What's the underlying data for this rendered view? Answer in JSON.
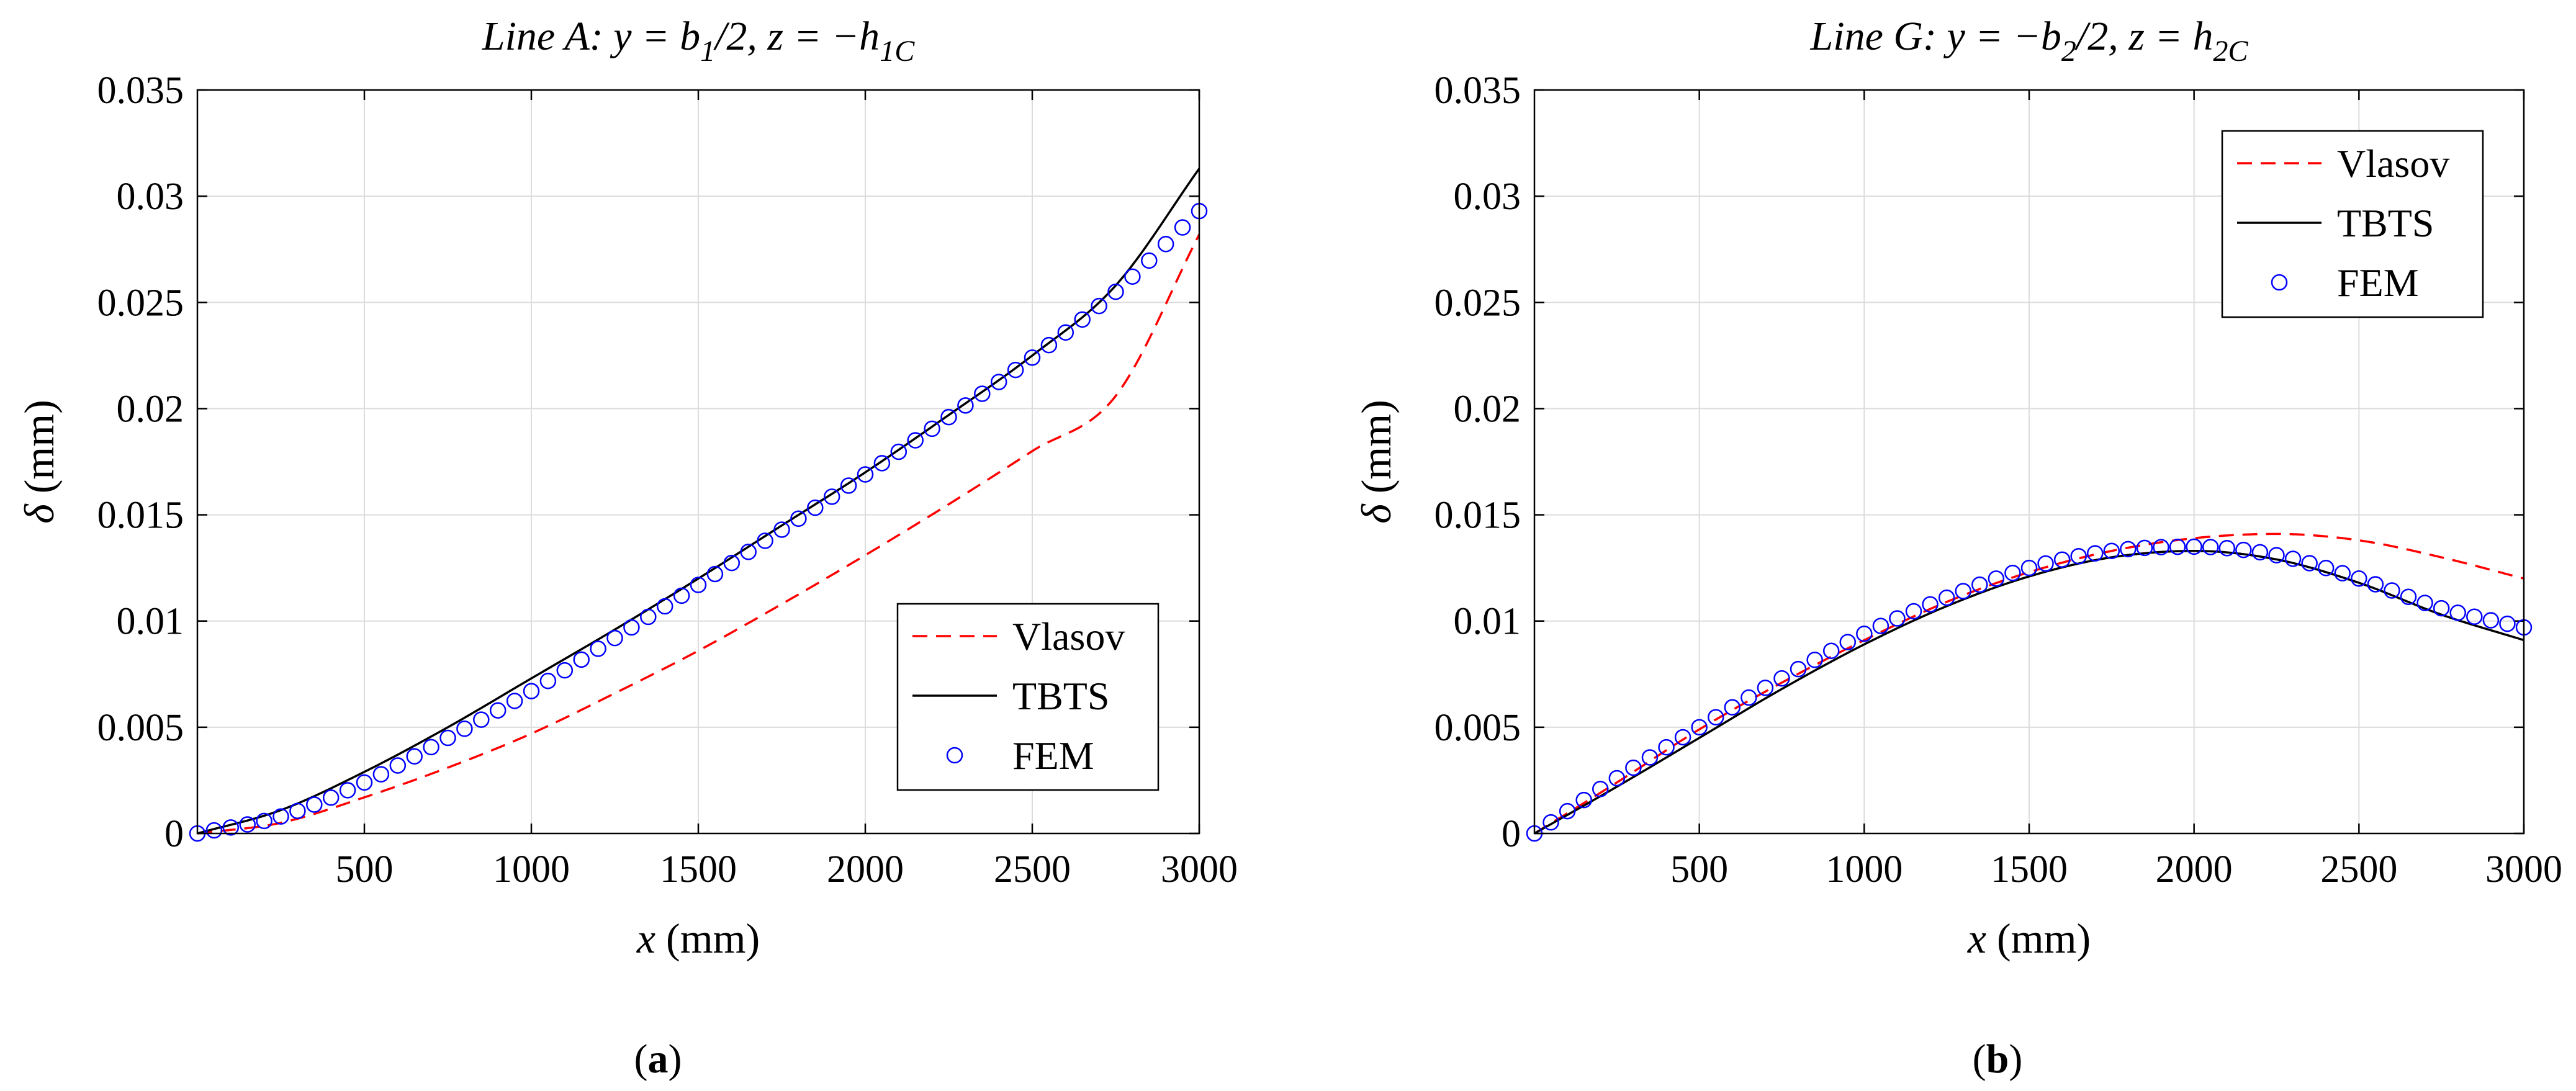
{
  "chart_data": [
    {
      "type": "line",
      "panel_label": "(a)",
      "title": "Line A: y = b1/2, z = −h1C",
      "title_parts": [
        "Line A: y = b",
        "1",
        "/2, z = −h",
        "1C"
      ],
      "xlabel": "x (mm)",
      "ylabel": "δ (mm)",
      "xlim": [
        0,
        3000
      ],
      "ylim": [
        0,
        0.035
      ],
      "xticks": [
        500,
        1000,
        1500,
        2000,
        2500,
        3000
      ],
      "xtick_labels": [
        "500",
        "1000",
        "1500",
        "2000",
        "2500",
        "3000"
      ],
      "yticks": [
        0,
        0.005,
        0.01,
        0.015,
        0.02,
        0.025,
        0.03,
        0.035
      ],
      "ytick_labels": [
        "0",
        "0.005",
        "0.01",
        "0.015",
        "0.02",
        "0.025",
        "0.03",
        "0.035"
      ],
      "grid": true,
      "legend_position": "bottom-right",
      "legend": [
        "Vlasov",
        "TBTS",
        "FEM"
      ],
      "series": [
        {
          "name": "Vlasov",
          "style": "dashed",
          "color": "#ff0000",
          "x": [
            0,
            250,
            500,
            750,
            1000,
            1250,
            1500,
            1750,
            2000,
            2250,
            2500,
            2750,
            3000
          ],
          "y": [
            0,
            0.0005,
            0.0017,
            0.0031,
            0.0047,
            0.0066,
            0.0086,
            0.0108,
            0.0131,
            0.0155,
            0.018,
            0.0206,
            0.0282
          ]
        },
        {
          "name": "TBTS",
          "style": "solid",
          "color": "#000000",
          "x": [
            0,
            250,
            500,
            750,
            1000,
            1250,
            1500,
            1750,
            2000,
            2250,
            2500,
            2750,
            3000
          ],
          "y": [
            0,
            0.0011,
            0.0029,
            0.005,
            0.0073,
            0.0096,
            0.012,
            0.0145,
            0.017,
            0.0197,
            0.0225,
            0.0258,
            0.0313
          ]
        },
        {
          "name": "FEM",
          "style": "markers",
          "marker": "circle",
          "color": "#0000ff",
          "x": [
            0,
            250,
            500,
            750,
            1000,
            1250,
            1500,
            1750,
            2000,
            2250,
            2500,
            2750,
            3000
          ],
          "y": [
            0,
            0.0008,
            0.0024,
            0.0045,
            0.0067,
            0.0092,
            0.0117,
            0.0143,
            0.0169,
            0.0196,
            0.0224,
            0.0255,
            0.0293
          ]
        }
      ]
    },
    {
      "type": "line",
      "panel_label": "(b)",
      "title": "Line G: y = −b2/2, z = h2C",
      "title_parts": [
        "Line G: y = −b",
        "2",
        "/2, z = h",
        "2C"
      ],
      "xlabel": "x (mm)",
      "ylabel": "δ (mm)",
      "xlim": [
        0,
        3000
      ],
      "ylim": [
        0,
        0.035
      ],
      "xticks": [
        500,
        1000,
        1500,
        2000,
        2500,
        3000
      ],
      "xtick_labels": [
        "500",
        "1000",
        "1500",
        "2000",
        "2500",
        "3000"
      ],
      "yticks": [
        0,
        0.005,
        0.01,
        0.015,
        0.02,
        0.025,
        0.03,
        0.035
      ],
      "ytick_labels": [
        "0",
        "0.005",
        "0.01",
        "0.015",
        "0.02",
        "0.025",
        "0.03",
        "0.035"
      ],
      "grid": true,
      "legend_position": "top-right",
      "legend": [
        "Vlasov",
        "TBTS",
        "FEM"
      ],
      "series": [
        {
          "name": "Vlasov",
          "style": "dashed",
          "color": "#ff0000",
          "x": [
            0,
            250,
            500,
            750,
            1000,
            1250,
            1500,
            1750,
            2000,
            2250,
            2500,
            2750,
            3000
          ],
          "y": [
            0,
            0.0024,
            0.0049,
            0.0071,
            0.0091,
            0.0109,
            0.0123,
            0.0133,
            0.0139,
            0.0141,
            0.0138,
            0.013,
            0.012
          ]
        },
        {
          "name": "TBTS",
          "style": "solid",
          "color": "#000000",
          "x": [
            0,
            250,
            500,
            750,
            1000,
            1250,
            1500,
            1750,
            2000,
            2250,
            2500,
            2750,
            3000
          ],
          "y": [
            0,
            0.0022,
            0.0045,
            0.0068,
            0.0089,
            0.0107,
            0.0121,
            0.013,
            0.0133,
            0.0129,
            0.0118,
            0.0103,
            0.0091
          ]
        },
        {
          "name": "FEM",
          "style": "markers",
          "marker": "circle",
          "color": "#0000ff",
          "x": [
            0,
            250,
            500,
            750,
            1000,
            1250,
            1500,
            1750,
            2000,
            2250,
            2500,
            2750,
            3000
          ],
          "y": [
            0,
            0.0026,
            0.005,
            0.0073,
            0.0094,
            0.0111,
            0.0125,
            0.0133,
            0.0135,
            0.0131,
            0.012,
            0.0106,
            0.0097
          ]
        }
      ]
    }
  ]
}
